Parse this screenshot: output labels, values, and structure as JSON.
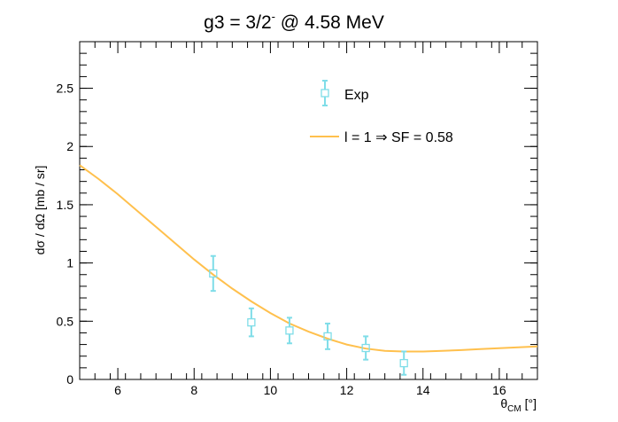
{
  "chart_data": {
    "type": "scatter",
    "title_main": "g3 = 3/2",
    "title_sup": "-",
    "title_tail": " @ 4.58 MeV",
    "xlabel_main": "θ",
    "xlabel_sub": "CM",
    "xlabel_unit": " [°]",
    "ylabel": "dσ / dΩ [mb / sr]",
    "xlim": [
      5,
      17
    ],
    "ylim": [
      0,
      2.9
    ],
    "x_ticks": [
      6,
      8,
      10,
      12,
      14,
      16
    ],
    "x_tick_labels": [
      "6",
      "8",
      "10",
      "12",
      "14",
      "16"
    ],
    "y_ticks": [
      0,
      0.5,
      1,
      1.5,
      2,
      2.5
    ],
    "y_tick_labels": [
      "0",
      "0.5",
      "1",
      "1.5",
      "2",
      "2.5"
    ],
    "legend_position": "top-center",
    "grid": false,
    "series": [
      {
        "name": "Exp",
        "kind": "points-with-errors",
        "color": "#7fdde8",
        "marker": "open-square",
        "x": [
          8.5,
          9.5,
          10.5,
          11.5,
          12.5,
          13.5
        ],
        "y": [
          0.91,
          0.49,
          0.42,
          0.37,
          0.27,
          0.14
        ],
        "yerr": [
          0.15,
          0.12,
          0.11,
          0.11,
          0.1,
          0.1
        ]
      },
      {
        "name": "l = 1 ⇒ SF = 0.58",
        "kind": "line",
        "color": "#ffc04d",
        "x": [
          5,
          5.5,
          6,
          6.5,
          7,
          7.5,
          8,
          8.5,
          9,
          9.5,
          10,
          10.5,
          11,
          11.5,
          12,
          12.5,
          13,
          13.5,
          14,
          14.5,
          15,
          15.5,
          16,
          16.5,
          17
        ],
        "y": [
          1.84,
          1.72,
          1.59,
          1.45,
          1.31,
          1.17,
          1.03,
          0.9,
          0.78,
          0.67,
          0.57,
          0.48,
          0.41,
          0.35,
          0.3,
          0.265,
          0.245,
          0.24,
          0.24,
          0.245,
          0.252,
          0.26,
          0.268,
          0.276,
          0.284
        ]
      }
    ]
  }
}
